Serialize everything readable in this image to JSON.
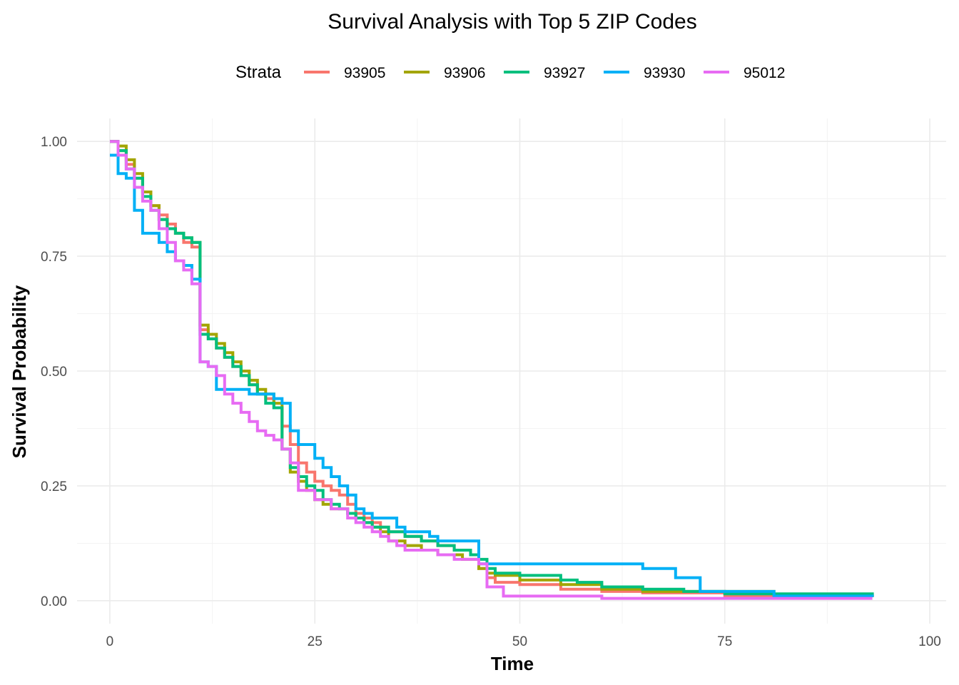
{
  "chart_data": {
    "type": "line",
    "step": true,
    "title": "Survival Analysis with Top 5 ZIP Codes",
    "xlabel": "Time",
    "ylabel": "Survival Probability",
    "xlim": [
      -4,
      102
    ],
    "ylim": [
      -0.05,
      1.05
    ],
    "xticks": [
      0,
      25,
      50,
      75,
      100
    ],
    "xtick_labels": [
      "0",
      "25",
      "50",
      "75",
      "100"
    ],
    "yticks": [
      0,
      0.25,
      0.5,
      0.75,
      1.0
    ],
    "ytick_labels": [
      "0.00",
      "0.25",
      "0.50",
      "0.75",
      "1.00"
    ],
    "grid": true,
    "legend": {
      "title": "Strata",
      "position": "top"
    },
    "series": [
      {
        "name": "93905",
        "color": "#F8766D",
        "points": [
          [
            0,
            1.0
          ],
          [
            1,
            0.98
          ],
          [
            2,
            0.95
          ],
          [
            3,
            0.92
          ],
          [
            4,
            0.89
          ],
          [
            5,
            0.86
          ],
          [
            6,
            0.84
          ],
          [
            7,
            0.82
          ],
          [
            8,
            0.8
          ],
          [
            9,
            0.78
          ],
          [
            10,
            0.77
          ],
          [
            11,
            0.59
          ],
          [
            12,
            0.57
          ],
          [
            13,
            0.55
          ],
          [
            14,
            0.53
          ],
          [
            15,
            0.51
          ],
          [
            16,
            0.49
          ],
          [
            17,
            0.47
          ],
          [
            18,
            0.45
          ],
          [
            19,
            0.44
          ],
          [
            20,
            0.42
          ],
          [
            21,
            0.38
          ],
          [
            22,
            0.34
          ],
          [
            23,
            0.3
          ],
          [
            24,
            0.28
          ],
          [
            25,
            0.26
          ],
          [
            26,
            0.25
          ],
          [
            27,
            0.24
          ],
          [
            28,
            0.23
          ],
          [
            29,
            0.21
          ],
          [
            30,
            0.19
          ],
          [
            31,
            0.18
          ],
          [
            32,
            0.17
          ],
          [
            33,
            0.16
          ],
          [
            34,
            0.15
          ],
          [
            36,
            0.14
          ],
          [
            38,
            0.13
          ],
          [
            40,
            0.12
          ],
          [
            42,
            0.11
          ],
          [
            44,
            0.1
          ],
          [
            45,
            0.07
          ],
          [
            46,
            0.05
          ],
          [
            47,
            0.04
          ],
          [
            50,
            0.035
          ],
          [
            55,
            0.025
          ],
          [
            60,
            0.02
          ],
          [
            65,
            0.017
          ],
          [
            75,
            0.01
          ],
          [
            93,
            0.008
          ]
        ]
      },
      {
        "name": "93906",
        "color": "#A3A500",
        "points": [
          [
            0,
            1.0
          ],
          [
            1,
            0.99
          ],
          [
            2,
            0.96
          ],
          [
            3,
            0.93
          ],
          [
            4,
            0.89
          ],
          [
            5,
            0.86
          ],
          [
            6,
            0.83
          ],
          [
            7,
            0.81
          ],
          [
            8,
            0.8
          ],
          [
            9,
            0.79
          ],
          [
            10,
            0.78
          ],
          [
            11,
            0.6
          ],
          [
            12,
            0.58
          ],
          [
            13,
            0.56
          ],
          [
            14,
            0.54
          ],
          [
            15,
            0.52
          ],
          [
            16,
            0.5
          ],
          [
            17,
            0.48
          ],
          [
            18,
            0.46
          ],
          [
            19,
            0.45
          ],
          [
            20,
            0.43
          ],
          [
            21,
            0.33
          ],
          [
            22,
            0.28
          ],
          [
            23,
            0.26
          ],
          [
            24,
            0.24
          ],
          [
            25,
            0.22
          ],
          [
            26,
            0.21
          ],
          [
            27,
            0.2
          ],
          [
            29,
            0.19
          ],
          [
            30,
            0.18
          ],
          [
            31,
            0.17
          ],
          [
            32,
            0.16
          ],
          [
            33,
            0.15
          ],
          [
            34,
            0.13
          ],
          [
            36,
            0.12
          ],
          [
            38,
            0.11
          ],
          [
            40,
            0.1
          ],
          [
            43,
            0.09
          ],
          [
            45,
            0.07
          ],
          [
            46,
            0.06
          ],
          [
            47,
            0.055
          ],
          [
            50,
            0.045
          ],
          [
            55,
            0.035
          ],
          [
            60,
            0.025
          ],
          [
            65,
            0.02
          ],
          [
            81,
            0.01
          ],
          [
            93,
            0.008
          ]
        ]
      },
      {
        "name": "93927",
        "color": "#00BF7D",
        "points": [
          [
            0,
            1.0
          ],
          [
            1,
            0.98
          ],
          [
            2,
            0.94
          ],
          [
            3,
            0.92
          ],
          [
            4,
            0.88
          ],
          [
            5,
            0.85
          ],
          [
            6,
            0.83
          ],
          [
            7,
            0.81
          ],
          [
            8,
            0.8
          ],
          [
            9,
            0.79
          ],
          [
            10,
            0.78
          ],
          [
            11,
            0.58
          ],
          [
            12,
            0.57
          ],
          [
            13,
            0.55
          ],
          [
            14,
            0.53
          ],
          [
            15,
            0.51
          ],
          [
            16,
            0.49
          ],
          [
            17,
            0.47
          ],
          [
            18,
            0.45
          ],
          [
            19,
            0.43
          ],
          [
            20,
            0.42
          ],
          [
            21,
            0.33
          ],
          [
            22,
            0.29
          ],
          [
            23,
            0.27
          ],
          [
            24,
            0.25
          ],
          [
            25,
            0.24
          ],
          [
            26,
            0.22
          ],
          [
            27,
            0.21
          ],
          [
            28,
            0.2
          ],
          [
            29,
            0.19
          ],
          [
            30,
            0.18
          ],
          [
            31,
            0.17
          ],
          [
            32,
            0.16
          ],
          [
            34,
            0.15
          ],
          [
            36,
            0.14
          ],
          [
            38,
            0.13
          ],
          [
            40,
            0.12
          ],
          [
            42,
            0.11
          ],
          [
            44,
            0.1
          ],
          [
            45,
            0.09
          ],
          [
            46,
            0.07
          ],
          [
            47,
            0.06
          ],
          [
            50,
            0.055
          ],
          [
            55,
            0.045
          ],
          [
            57,
            0.04
          ],
          [
            60,
            0.03
          ],
          [
            65,
            0.025
          ],
          [
            70,
            0.02
          ],
          [
            75,
            0.015
          ],
          [
            93,
            0.01
          ]
        ]
      },
      {
        "name": "93930",
        "color": "#00B0F6",
        "points": [
          [
            0,
            0.97
          ],
          [
            1,
            0.93
          ],
          [
            2,
            0.92
          ],
          [
            3,
            0.85
          ],
          [
            4,
            0.8
          ],
          [
            5,
            0.8
          ],
          [
            6,
            0.78
          ],
          [
            7,
            0.76
          ],
          [
            8,
            0.74
          ],
          [
            9,
            0.73
          ],
          [
            10,
            0.7
          ],
          [
            11,
            0.52
          ],
          [
            12,
            0.51
          ],
          [
            13,
            0.46
          ],
          [
            15,
            0.46
          ],
          [
            17,
            0.45
          ],
          [
            20,
            0.44
          ],
          [
            21,
            0.43
          ],
          [
            22,
            0.37
          ],
          [
            23,
            0.34
          ],
          [
            25,
            0.31
          ],
          [
            26,
            0.29
          ],
          [
            27,
            0.27
          ],
          [
            28,
            0.25
          ],
          [
            29,
            0.23
          ],
          [
            30,
            0.2
          ],
          [
            31,
            0.19
          ],
          [
            32,
            0.18
          ],
          [
            35,
            0.16
          ],
          [
            36,
            0.15
          ],
          [
            39,
            0.14
          ],
          [
            40,
            0.13
          ],
          [
            45,
            0.08
          ],
          [
            65,
            0.07
          ],
          [
            69,
            0.05
          ],
          [
            72,
            0.02
          ],
          [
            81,
            0.01
          ],
          [
            93,
            0.008
          ]
        ]
      },
      {
        "name": "95012",
        "color": "#E76BF3",
        "points": [
          [
            0,
            1.0
          ],
          [
            1,
            0.97
          ],
          [
            2,
            0.94
          ],
          [
            3,
            0.9
          ],
          [
            4,
            0.87
          ],
          [
            5,
            0.85
          ],
          [
            6,
            0.81
          ],
          [
            7,
            0.78
          ],
          [
            8,
            0.74
          ],
          [
            9,
            0.72
          ],
          [
            10,
            0.69
          ],
          [
            11,
            0.52
          ],
          [
            12,
            0.51
          ],
          [
            13,
            0.49
          ],
          [
            14,
            0.45
          ],
          [
            15,
            0.43
          ],
          [
            16,
            0.41
          ],
          [
            17,
            0.39
          ],
          [
            18,
            0.37
          ],
          [
            19,
            0.36
          ],
          [
            20,
            0.35
          ],
          [
            21,
            0.33
          ],
          [
            22,
            0.3
          ],
          [
            23,
            0.24
          ],
          [
            25,
            0.22
          ],
          [
            27,
            0.2
          ],
          [
            29,
            0.18
          ],
          [
            30,
            0.17
          ],
          [
            31,
            0.16
          ],
          [
            32,
            0.15
          ],
          [
            33,
            0.14
          ],
          [
            34,
            0.13
          ],
          [
            35,
            0.12
          ],
          [
            36,
            0.11
          ],
          [
            40,
            0.1
          ],
          [
            42,
            0.09
          ],
          [
            45,
            0.08
          ],
          [
            46,
            0.03
          ],
          [
            48,
            0.01
          ],
          [
            60,
            0.005
          ],
          [
            93,
            0.005
          ]
        ]
      }
    ]
  }
}
